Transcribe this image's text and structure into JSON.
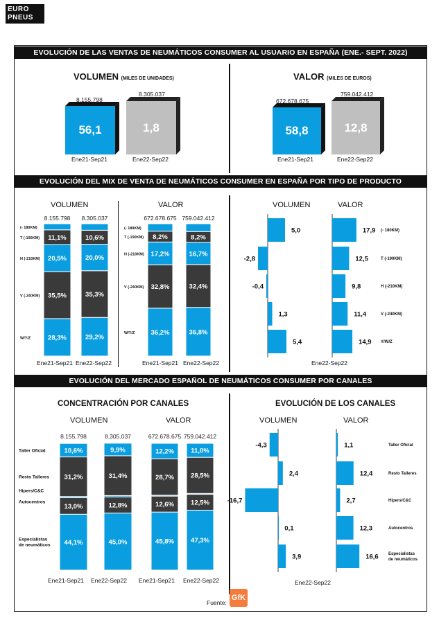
{
  "logo": "EURO\nPNEUS",
  "sections": {
    "s1": "EVOLUCIÓN DE LAS VENTAS DE NEUMÁTICOS CONSUMER AL USUARIO EN ESPAÑA (ENE.- SEPT. 2022)",
    "s2": "EVOLUCIÓN DEL MIX DE VENTA DE NEUMÁTICOS CONSUMER EN ESPAÑA POR TIPO DE PRODUCTO",
    "s3": "EVOLUCIÓN DEL MERCADO ESPAÑOL DE NEUMÁTICOS CONSUMER POR CANALES"
  },
  "source_label": "Fuente:",
  "source_logo": "GfK",
  "chart_data": [
    {
      "type": "bar",
      "title": "VOLUMEN",
      "title_small": "(MILES DE UNIDADES)",
      "categories": [
        "Ene21-Sep21",
        "Ene22-Sep22"
      ],
      "totals": [
        "8.155.798",
        "8.305.037"
      ],
      "bar_labels": [
        "56,1",
        "1,8"
      ],
      "colors": [
        "#0a9ee0",
        "#bfbfbf"
      ]
    },
    {
      "type": "bar",
      "title": "VALOR",
      "title_small": "(MILES DE EUROS)",
      "categories": [
        "Ene21-Sep21",
        "Ene22-Sep22"
      ],
      "totals": [
        "672.678.675",
        "759.042.412"
      ],
      "bar_labels": [
        "58,8",
        "12,8"
      ],
      "colors": [
        "#0a9ee0",
        "#bfbfbf"
      ]
    },
    {
      "type": "bar",
      "stacked": true,
      "title": "VOLUMEN",
      "categories": [
        "Ene21-Sep21",
        "Ene22-Sep22"
      ],
      "totals": [
        "8.155.798",
        "8.305.037"
      ],
      "segments": [
        "W/Y/Z",
        "V (-240KM)",
        "H (-210KM)",
        "T (-190KM)",
        "(- 180KM)"
      ],
      "series": [
        {
          "values": [
            28.3,
            29.2
          ],
          "labels": [
            "28,3%",
            "29,2%"
          ]
        },
        {
          "values": [
            35.5,
            35.3
          ],
          "labels": [
            "35,5%",
            "35,3%"
          ]
        },
        {
          "values": [
            20.5,
            20.0
          ],
          "labels": [
            "20,5%",
            "20,0%"
          ]
        },
        {
          "values": [
            11.1,
            10.6
          ],
          "labels": [
            "11,1%",
            "10,6%"
          ]
        },
        {
          "values": [
            4.6,
            4.9
          ],
          "labels": [
            "",
            ""
          ]
        }
      ]
    },
    {
      "type": "bar",
      "stacked": true,
      "title": "VALOR",
      "categories": [
        "Ene21-Sep21",
        "Ene22-Sep22"
      ],
      "totals": [
        "672.678.675",
        "759.042.412"
      ],
      "segments": [
        "W/Y/Z",
        "V (-240KM)",
        "H (-210KM)",
        "T (-190KM)",
        "(- 180KM)"
      ],
      "series": [
        {
          "values": [
            36.2,
            36.8
          ],
          "labels": [
            "36,2%",
            "36,8%"
          ]
        },
        {
          "values": [
            32.8,
            32.4
          ],
          "labels": [
            "32,8%",
            "32,4%"
          ]
        },
        {
          "values": [
            17.2,
            16.7
          ],
          "labels": [
            "17,2%",
            "16,7%"
          ]
        },
        {
          "values": [
            8.2,
            8.2
          ],
          "labels": [
            "8,2%",
            "8,2%"
          ]
        },
        {
          "values": [
            5.6,
            5.9
          ],
          "labels": [
            "",
            ""
          ]
        }
      ]
    },
    {
      "type": "bar",
      "orientation": "horizontal",
      "panels": [
        "VOLUMEN",
        "VALOR"
      ],
      "categories": [
        "(- 180KM)",
        "T (-190KM)",
        "H (-210KM)",
        "V (-240KM)",
        "Y/W/Z"
      ],
      "xlabel": "Ene22-Sep22",
      "series": [
        {
          "name": "VOLUMEN",
          "values": [
            5.0,
            -2.8,
            -0.4,
            1.3,
            5.4
          ],
          "labels": [
            "5,0",
            "-2,8",
            "-0,4",
            "1,3",
            "5,4"
          ]
        },
        {
          "name": "VALOR",
          "values": [
            17.9,
            12.5,
            9.8,
            11.4,
            14.9
          ],
          "labels": [
            "17,9",
            "12,5",
            "9,8",
            "11,4",
            "14,9"
          ]
        }
      ]
    },
    {
      "type": "bar",
      "stacked": true,
      "title": "CONCENTRACIÓN POR CANALES",
      "panel": "VOLUMEN",
      "categories": [
        "Ene21-Sep21",
        "Ene22-Sep22"
      ],
      "totals": [
        "8.155.798",
        "8.305.037"
      ],
      "segments": [
        "Especialistas de neumáticos",
        "Autocentros",
        "Hipers/C&C",
        "Resto Talleres",
        "Taller Oficial"
      ],
      "series": [
        {
          "values": [
            44.1,
            45.0
          ],
          "labels": [
            "44,1%",
            "45,0%"
          ]
        },
        {
          "values": [
            13.0,
            12.8
          ],
          "labels": [
            "13,0%",
            "12,8%"
          ]
        },
        {
          "values": [
            1.0,
            1.0
          ],
          "labels": [
            "",
            ""
          ]
        },
        {
          "values": [
            31.2,
            31.4
          ],
          "labels": [
            "31,2%",
            "31,4%"
          ]
        },
        {
          "values": [
            10.6,
            9.9
          ],
          "labels": [
            "10,6%",
            "9,9%"
          ]
        }
      ]
    },
    {
      "type": "bar",
      "stacked": true,
      "panel": "VALOR",
      "categories": [
        "Ene21-Sep21",
        "Ene22-Sep22"
      ],
      "totals": [
        "672.678.675",
        "759.042.412"
      ],
      "segments": [
        "Especialistas de neumáticos",
        "Autocentros",
        "Hipers/C&C",
        "Resto Talleres",
        "Taller Oficial"
      ],
      "series": [
        {
          "values": [
            45.8,
            47.3
          ],
          "labels": [
            "45,8%",
            "47,3%"
          ]
        },
        {
          "values": [
            12.6,
            12.5
          ],
          "labels": [
            "12,6%",
            "12,5%"
          ]
        },
        {
          "values": [
            0.7,
            0.7
          ],
          "labels": [
            "",
            ""
          ]
        },
        {
          "values": [
            28.7,
            28.5
          ],
          "labels": [
            "28,7%",
            "28,5%"
          ]
        },
        {
          "values": [
            12.2,
            11.0
          ],
          "labels": [
            "12,2%",
            "11,0%"
          ]
        }
      ]
    },
    {
      "type": "bar",
      "orientation": "horizontal",
      "title": "EVOLUCIÓN DE LOS CANALES",
      "panels": [
        "VOLUMEN",
        "VALOR"
      ],
      "categories": [
        "Taller Oficial",
        "Resto Talleres",
        "Hipers/C&C",
        "Autocentros",
        "Especialistas de neumáticos"
      ],
      "xlabel": "Ene22-Sep22",
      "series": [
        {
          "name": "VOLUMEN",
          "values": [
            -4.3,
            2.4,
            -16.7,
            0.1,
            3.9
          ],
          "labels": [
            "-4,3",
            "2,4",
            "-16,7",
            "0,1",
            "3,9"
          ]
        },
        {
          "name": "VALOR",
          "values": [
            1.1,
            12.4,
            2.7,
            12.3,
            16.6
          ],
          "labels": [
            "1,1",
            "12,4",
            "2,7",
            "12,3",
            "16,6"
          ]
        }
      ]
    }
  ]
}
